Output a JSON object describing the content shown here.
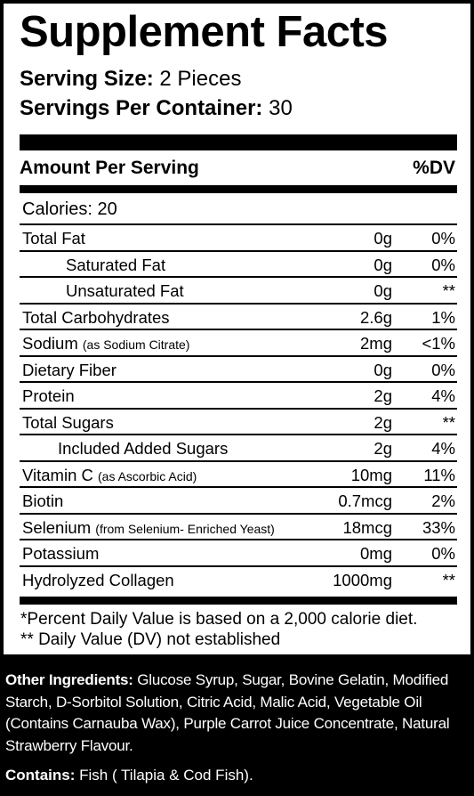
{
  "panel": {
    "title": "Supplement Facts",
    "serving_size_label": "Serving Size:",
    "serving_size_value": "2 Pieces",
    "servings_per_label": "Servings Per Container:",
    "servings_per_value": "30",
    "amount_header": "Amount Per Serving",
    "dv_header": "%DV",
    "calories": "Calories: 20",
    "rows": [
      {
        "name": "Total Fat",
        "qualifier": "",
        "amount": "0g",
        "dv": "0%"
      },
      {
        "name": "Saturated Fat",
        "qualifier": "",
        "amount": "0g",
        "dv": "0%"
      },
      {
        "name": "Unsaturated Fat",
        "qualifier": "",
        "amount": "0g",
        "dv": "**"
      },
      {
        "name": "Total Carbohydrates",
        "qualifier": "",
        "amount": "2.6g",
        "dv": "1%"
      },
      {
        "name": "Sodium",
        "qualifier": "(as Sodium Citrate)",
        "amount": "2mg",
        "dv": "<1%"
      },
      {
        "name": "Dietary Fiber",
        "qualifier": "",
        "amount": "0g",
        "dv": "0%"
      },
      {
        "name": "Protein",
        "qualifier": "",
        "amount": "2g",
        "dv": "4%"
      },
      {
        "name": "Total Sugars",
        "qualifier": "",
        "amount": "2g",
        "dv": "**"
      },
      {
        "name": "Included Added Sugars",
        "qualifier": "",
        "amount": "2g",
        "dv": "4%"
      },
      {
        "name": "Vitamin C",
        "qualifier": "(as Ascorbic Acid)",
        "amount": "10mg",
        "dv": "11%"
      },
      {
        "name": "Biotin",
        "qualifier": "",
        "amount": "0.7mcg",
        "dv": "2%"
      },
      {
        "name": "Selenium",
        "qualifier": "(from Selenium- Enriched Yeast)",
        "amount": "18mcg",
        "dv": "33%"
      },
      {
        "name": "Potassium",
        "qualifier": "",
        "amount": "0mg",
        "dv": "0%"
      },
      {
        "name": "Hydrolyzed Collagen",
        "qualifier": "",
        "amount": "1000mg",
        "dv": "**"
      }
    ],
    "footnote_1": "*Percent Daily Value is based on a 2,000 calorie diet.",
    "footnote_2": "** Daily Value (DV) not established"
  },
  "other_ingredients": {
    "label": "Other Ingredients:",
    "text": "Glucose Syrup, Sugar, Bovine Gelatin, Modified Starch, D-Sorbitol Solution, Citric Acid, Malic Acid, Vegetable Oil (Contains Carnauba Wax), Purple Carrot Juice Concentrate, Natural Strawberry Flavour."
  },
  "contains": {
    "label": "Contains:",
    "text": "Fish ( Tilapia & Cod Fish)."
  }
}
